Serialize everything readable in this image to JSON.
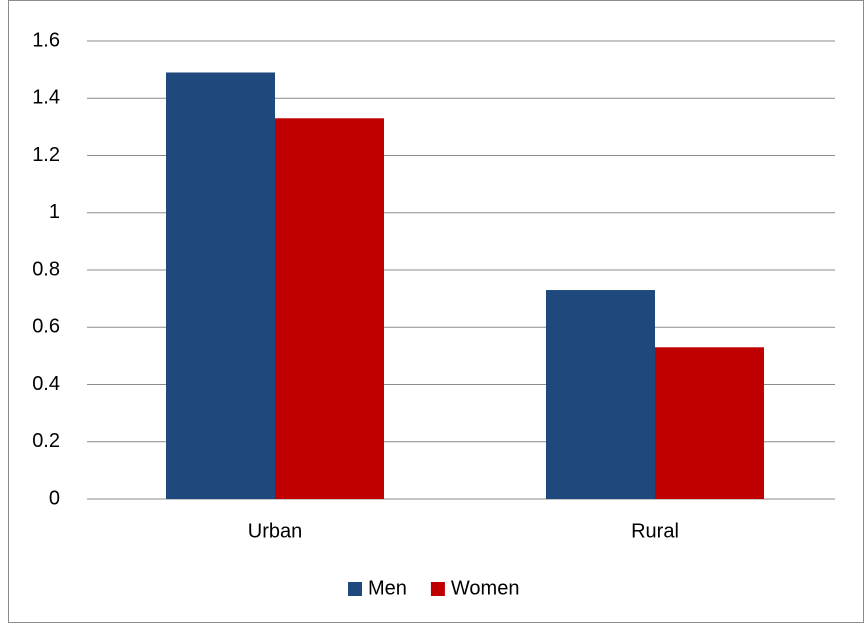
{
  "chart_data": {
    "type": "bar",
    "categories": [
      "Urban",
      "Rural"
    ],
    "series": [
      {
        "name": "Men",
        "color": "#1f497d",
        "values": [
          1.49,
          0.73
        ]
      },
      {
        "name": "Women",
        "color": "#c00000",
        "values": [
          1.33,
          0.53
        ]
      }
    ],
    "ylim": [
      0,
      1.6
    ],
    "yticks": [
      0,
      0.2,
      0.4,
      0.6,
      0.8,
      1,
      1.2,
      1.4,
      1.6
    ],
    "grid": true,
    "legend": "bottom"
  }
}
